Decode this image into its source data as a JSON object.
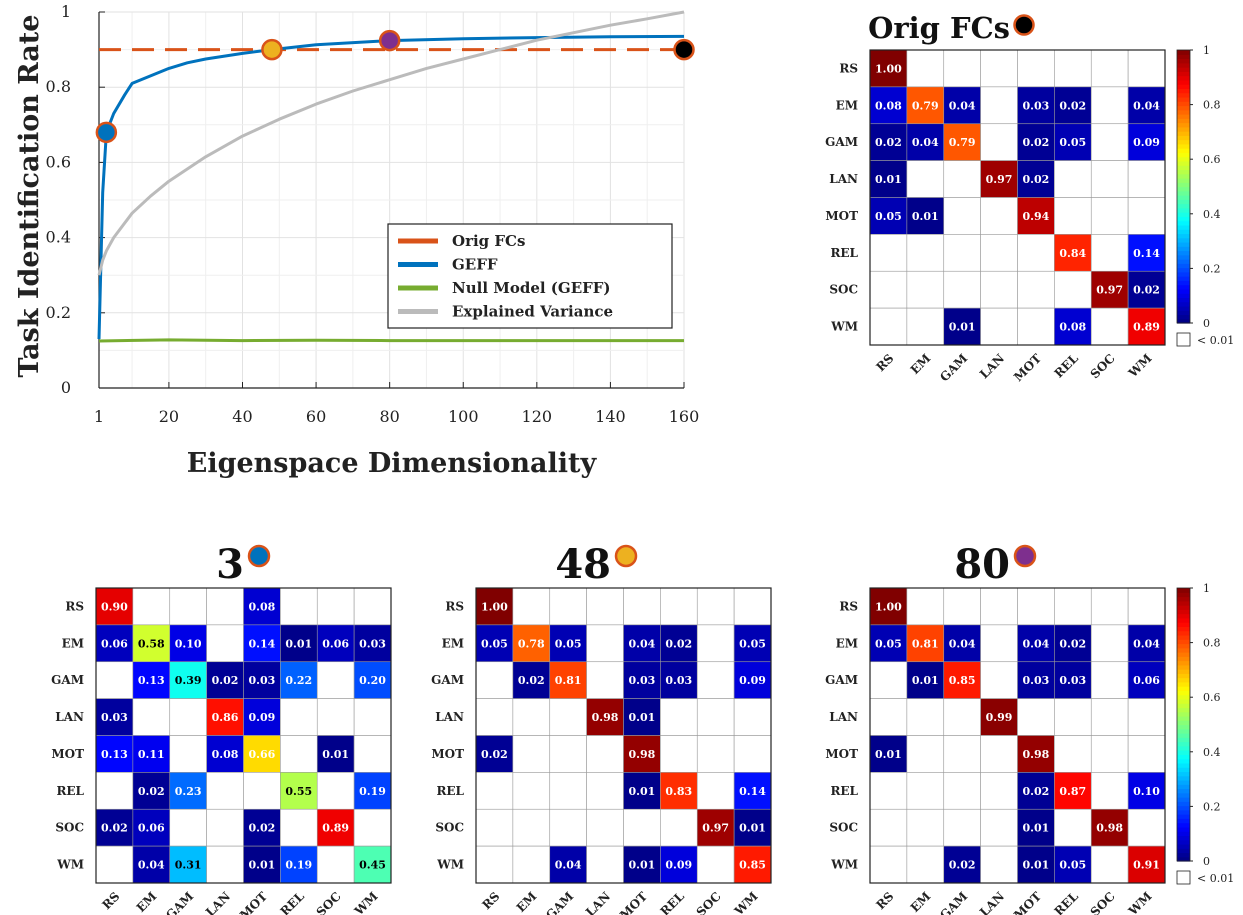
{
  "chart_data": [
    {
      "type": "line",
      "xlabel": "Eigenspace Dimensionality",
      "ylabel": "Task Identification Rate",
      "xlim": [
        1,
        160
      ],
      "ylim": [
        0,
        1
      ],
      "xticks": [
        "1",
        "20",
        "40",
        "60",
        "80",
        "100",
        "120",
        "140",
        "160"
      ],
      "xtick_values": [
        1,
        20,
        40,
        60,
        80,
        100,
        120,
        140,
        160
      ],
      "yticks": [
        "0",
        "0.2",
        "0.4",
        "0.6",
        "0.8",
        "1"
      ],
      "ytick_values": [
        0,
        0.2,
        0.4,
        0.6,
        0.8,
        1
      ],
      "grid": true,
      "legend_position": "lower-right",
      "series": [
        {
          "name": "Orig FCs",
          "color": "#d95319",
          "style": "dashed",
          "x": [
            1,
            160
          ],
          "y": [
            0.9,
            0.9
          ]
        },
        {
          "name": "GEFF",
          "color": "#0072bd",
          "style": "solid",
          "x": [
            1,
            2,
            3,
            5,
            8,
            10,
            15,
            20,
            25,
            30,
            40,
            48,
            60,
            80,
            100,
            120,
            140,
            160
          ],
          "y": [
            0.13,
            0.52,
            0.68,
            0.73,
            0.78,
            0.81,
            0.83,
            0.85,
            0.865,
            0.875,
            0.89,
            0.9,
            0.913,
            0.924,
            0.929,
            0.932,
            0.934,
            0.935
          ]
        },
        {
          "name": "Null Model (GEFF)",
          "color": "#77ac30",
          "style": "solid",
          "x": [
            1,
            20,
            40,
            60,
            80,
            100,
            120,
            140,
            160
          ],
          "y": [
            0.125,
            0.128,
            0.126,
            0.127,
            0.126,
            0.126,
            0.126,
            0.126,
            0.126
          ]
        },
        {
          "name": "Explained Variance",
          "color": "#bbbbbb",
          "style": "solid",
          "x": [
            1,
            2,
            3,
            5,
            10,
            15,
            20,
            30,
            40,
            50,
            60,
            70,
            80,
            90,
            100,
            110,
            120,
            130,
            140,
            150,
            160
          ],
          "y": [
            0.3,
            0.34,
            0.365,
            0.4,
            0.465,
            0.51,
            0.55,
            0.615,
            0.67,
            0.715,
            0.755,
            0.79,
            0.82,
            0.85,
            0.875,
            0.9,
            0.925,
            0.945,
            0.965,
            0.982,
            1.0
          ]
        }
      ],
      "markers": [
        {
          "x": 3,
          "y": 0.68,
          "color": "#0072bd"
        },
        {
          "x": 48,
          "y": 0.9,
          "color": "#edb120"
        },
        {
          "x": 80,
          "y": 0.924,
          "color": "#7e2f8e"
        },
        {
          "x": 160,
          "y": 0.9,
          "color": "#000000"
        }
      ]
    },
    {
      "type": "heatmap",
      "title": "Orig FCs",
      "marker_color": "#000000",
      "labels": [
        "RS",
        "EM",
        "GAM",
        "LAN",
        "MOT",
        "REL",
        "SOC",
        "WM"
      ],
      "matrix": [
        [
          1.0,
          null,
          null,
          null,
          null,
          null,
          null,
          null
        ],
        [
          0.08,
          0.79,
          0.04,
          null,
          0.03,
          0.02,
          null,
          0.04
        ],
        [
          0.02,
          0.04,
          0.79,
          null,
          0.02,
          0.05,
          null,
          0.09
        ],
        [
          0.01,
          null,
          null,
          0.97,
          0.02,
          null,
          null,
          null
        ],
        [
          0.05,
          0.01,
          null,
          null,
          0.94,
          null,
          null,
          null
        ],
        [
          null,
          null,
          null,
          null,
          null,
          0.84,
          null,
          0.14
        ],
        [
          null,
          null,
          null,
          null,
          null,
          null,
          0.97,
          0.02
        ],
        [
          null,
          null,
          0.01,
          null,
          null,
          0.08,
          null,
          0.89
        ]
      ],
      "colorbar_ticks": [
        "0",
        "0.2",
        "0.4",
        "0.6",
        "0.8",
        "1"
      ],
      "small_legend": "< 0.01"
    },
    {
      "type": "heatmap",
      "title": "3",
      "marker_color": "#0072bd",
      "labels": [
        "RS",
        "EM",
        "GAM",
        "LAN",
        "MOT",
        "REL",
        "SOC",
        "WM"
      ],
      "matrix": [
        [
          0.9,
          null,
          null,
          null,
          0.08,
          null,
          null,
          null
        ],
        [
          0.06,
          0.58,
          0.1,
          null,
          0.14,
          0.01,
          0.06,
          0.03
        ],
        [
          null,
          0.13,
          0.39,
          0.02,
          0.03,
          0.22,
          null,
          0.2
        ],
        [
          0.03,
          null,
          null,
          0.86,
          0.09,
          null,
          null,
          null
        ],
        [
          0.13,
          0.11,
          null,
          0.08,
          0.66,
          null,
          0.01,
          null
        ],
        [
          null,
          0.02,
          0.23,
          null,
          null,
          0.55,
          null,
          0.19
        ],
        [
          0.02,
          0.06,
          null,
          null,
          0.02,
          null,
          0.89,
          null
        ],
        [
          null,
          0.04,
          0.31,
          null,
          0.01,
          0.19,
          null,
          0.45
        ]
      ]
    },
    {
      "type": "heatmap",
      "title": "48",
      "marker_color": "#edb120",
      "labels": [
        "RS",
        "EM",
        "GAM",
        "LAN",
        "MOT",
        "REL",
        "SOC",
        "WM"
      ],
      "matrix": [
        [
          1.0,
          null,
          null,
          null,
          null,
          null,
          null,
          null
        ],
        [
          0.05,
          0.78,
          0.05,
          null,
          0.04,
          0.02,
          null,
          0.05
        ],
        [
          null,
          0.02,
          0.81,
          null,
          0.03,
          0.03,
          null,
          0.09
        ],
        [
          null,
          null,
          null,
          0.98,
          0.01,
          null,
          null,
          null
        ],
        [
          0.02,
          null,
          null,
          null,
          0.98,
          null,
          null,
          null
        ],
        [
          null,
          null,
          null,
          null,
          0.01,
          0.83,
          null,
          0.14
        ],
        [
          null,
          null,
          null,
          null,
          null,
          null,
          0.97,
          0.01
        ],
        [
          null,
          null,
          0.04,
          null,
          0.01,
          0.09,
          null,
          0.85
        ]
      ]
    },
    {
      "type": "heatmap",
      "title": "80",
      "marker_color": "#7e2f8e",
      "labels": [
        "RS",
        "EM",
        "GAM",
        "LAN",
        "MOT",
        "REL",
        "SOC",
        "WM"
      ],
      "matrix": [
        [
          1.0,
          null,
          null,
          null,
          null,
          null,
          null,
          null
        ],
        [
          0.05,
          0.81,
          0.04,
          null,
          0.04,
          0.02,
          null,
          0.04
        ],
        [
          null,
          0.01,
          0.85,
          null,
          0.03,
          0.03,
          null,
          0.06
        ],
        [
          null,
          null,
          null,
          0.99,
          null,
          null,
          null,
          null
        ],
        [
          0.01,
          null,
          null,
          null,
          0.98,
          null,
          null,
          null
        ],
        [
          null,
          null,
          null,
          null,
          0.02,
          0.87,
          null,
          0.1
        ],
        [
          null,
          null,
          null,
          null,
          0.01,
          null,
          0.98,
          null
        ],
        [
          null,
          null,
          0.02,
          null,
          0.01,
          0.05,
          null,
          0.91
        ]
      ],
      "colorbar_ticks": [
        "0",
        "0.2",
        "0.4",
        "0.6",
        "0.8",
        "1"
      ],
      "small_legend": "< 0.01"
    }
  ]
}
